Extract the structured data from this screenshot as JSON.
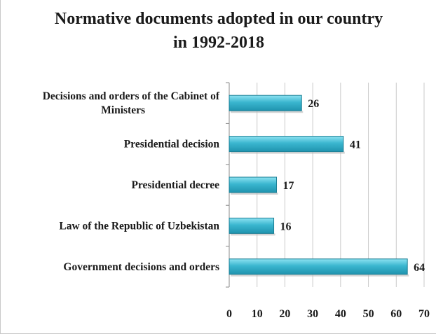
{
  "chart_data": {
    "type": "bar",
    "orientation": "horizontal",
    "title": [
      "Normative documents adopted in our country",
      "in 1992-2018"
    ],
    "categories": [
      "Decisions and orders of the Cabinet of Ministers",
      "Presidential decision",
      "Presidential decree",
      "Law of the Republic of Uzbekistan",
      "Government decisions and orders"
    ],
    "category_lines": [
      [
        "Decisions and orders of the Cabinet of",
        "Ministers"
      ],
      [
        "Presidential decision"
      ],
      [
        "Presidential decree"
      ],
      [
        "Law of the Republic of Uzbekistan"
      ],
      [
        "Government decisions and orders"
      ]
    ],
    "values": [
      26,
      41,
      17,
      16,
      64
    ],
    "xlim": [
      0,
      70
    ],
    "xticks": [
      0,
      10,
      20,
      30,
      40,
      50,
      60,
      70
    ],
    "grid": "vertical",
    "legend": "none",
    "bar_color": "#3ab6cf",
    "bar_edge_color": "#1d7f95"
  }
}
